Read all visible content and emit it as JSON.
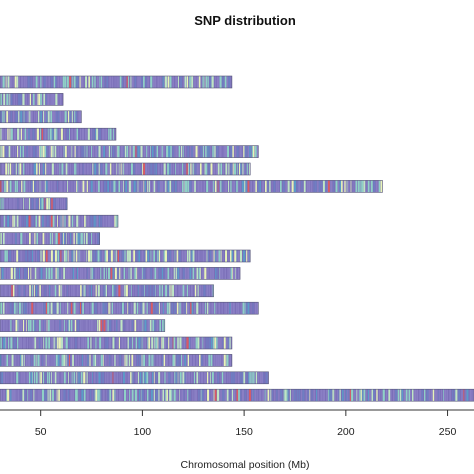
{
  "chart_data": {
    "type": "bar",
    "title": "SNP distribution",
    "xlabel": "Chromosomal position (Mb)",
    "ylabel": "",
    "xlim": [
      30,
      263
    ],
    "xticks": [
      "50",
      "100",
      "150",
      "200",
      "250"
    ],
    "xtick_values": [
      50,
      100,
      150,
      200,
      250
    ],
    "grid": false,
    "legend": "none",
    "palette": [
      "#7b6fb8",
      "#8a7fc4",
      "#6f7ec2",
      "#8fd1c6",
      "#bfe6c4",
      "#e8f4b8",
      "#5b9bc8",
      "#d95b63"
    ],
    "density_note": "",
    "chromosomes": [
      {
        "length": 144
      },
      {
        "length": 61
      },
      {
        "length": 70
      },
      {
        "length": 87
      },
      {
        "length": 157
      },
      {
        "length": 153
      },
      {
        "length": 218
      },
      {
        "length": 63
      },
      {
        "length": 88
      },
      {
        "length": 79
      },
      {
        "length": 153
      },
      {
        "length": 148
      },
      {
        "length": 135
      },
      {
        "length": 157
      },
      {
        "length": 111
      },
      {
        "length": 144
      },
      {
        "length": 144
      },
      {
        "length": 162
      },
      {
        "length": 263
      }
    ]
  }
}
